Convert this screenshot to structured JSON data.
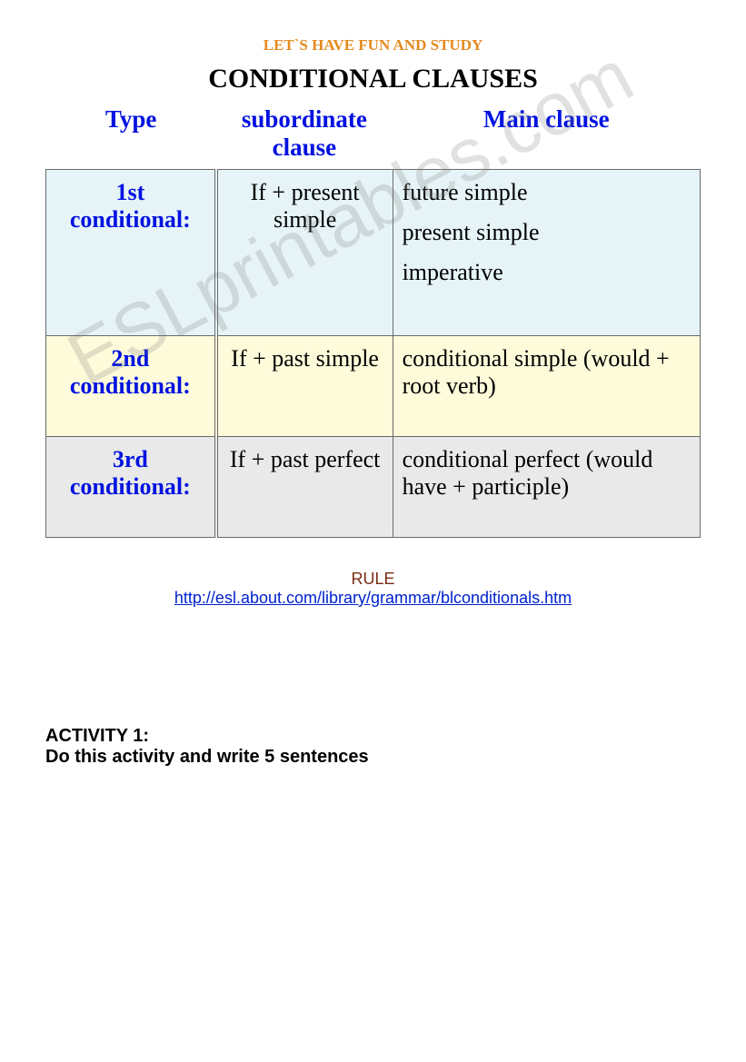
{
  "pretitle": "LET`S HAVE FUN AND STUDY",
  "title": "CONDITIONAL CLAUSES",
  "watermark": "ESLprintables.com",
  "colors": {
    "pretitle": "#e58a1f",
    "title": "#000000",
    "header_text": "#0012e0",
    "type_text": "#0012e0",
    "body_text": "#000000",
    "rule_label": "#7a2d16",
    "link": "#0022cc",
    "row1_bg": "#e6f4f8",
    "row2_bg": "#fdfbda",
    "row3_bg": "#e9e9e9",
    "border": "#6a6a6a",
    "page_bg": "#ffffff",
    "watermark": "rgba(120,120,120,0.22)"
  },
  "fonts": {
    "body": "Times New Roman",
    "rule_activity": "Arial",
    "title_size_pt": 22,
    "pretitle_size_pt": 13,
    "header_size_pt": 20,
    "cell_size_pt": 19,
    "rule_size_pt": 14,
    "activity_size_pt": 15
  },
  "table": {
    "headers": [
      "Type",
      "subordinate clause",
      "Main clause"
    ],
    "column_widths_pct": [
      26,
      27,
      47
    ],
    "rows": [
      {
        "type": "1st conditional:",
        "subordinate": "If + present simple",
        "main": [
          "future simple",
          "present simple",
          "imperative"
        ]
      },
      {
        "type": "2nd conditional:",
        "subordinate": "If + past simple",
        "main": "conditional simple (would + root verb)"
      },
      {
        "type": "3rd conditional:",
        "subordinate": "If + past perfect",
        "main": "conditional perfect (would have + participle)"
      }
    ]
  },
  "rule": {
    "label": "RULE",
    "url": "http://esl.about.com/library/grammar/blconditionals.htm"
  },
  "activity": {
    "title": "ACTIVITY 1:",
    "text": "Do this activity and write 5 sentences"
  }
}
